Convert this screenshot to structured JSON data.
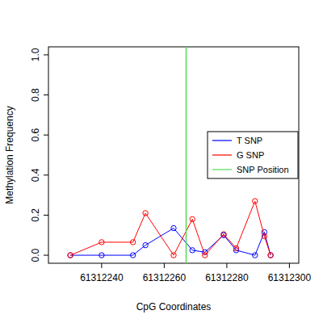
{
  "chart_data": {
    "type": "line",
    "x_label": "CpG Coordinates",
    "y_label": "Methylation Frequency",
    "x": [
      61312230,
      61312240,
      61312250,
      61312254,
      61312263,
      61312269,
      61312273,
      61312279,
      61312283,
      61312289,
      61312292,
      61312294
    ],
    "series": [
      {
        "name": "T SNP",
        "color": "#0000ff",
        "marker": "circle",
        "values": [
          0,
          0,
          0,
          0.05,
          0.135,
          0.025,
          0.015,
          0.1,
          0.025,
          0,
          0.115,
          0
        ]
      },
      {
        "name": "G SNP",
        "color": "#ff0000",
        "marker": "circle",
        "values": [
          0,
          0.065,
          0.065,
          0.21,
          0,
          0.18,
          0,
          0.105,
          0.035,
          0.27,
          0.095,
          0
        ]
      }
    ],
    "vline": {
      "name": "SNP Position",
      "value": 61312267,
      "color": "#55dd55"
    },
    "xlim": [
      61312223,
      61312303
    ],
    "ylim": [
      -0.04,
      1.04
    ],
    "xticks": [
      61312240,
      61312260,
      61312280,
      61312300
    ],
    "yticks": [
      {
        "value": 0,
        "label": "0.0"
      },
      0.2,
      0.4,
      0.6,
      0.8,
      {
        "value": 1,
        "label": "1.0"
      }
    ],
    "legend": "right",
    "grid": false
  }
}
